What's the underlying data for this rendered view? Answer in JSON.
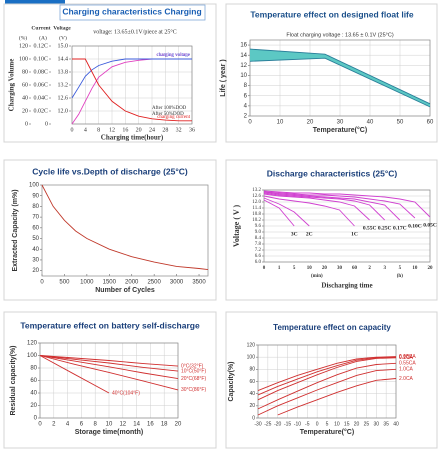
{
  "chart_data": [
    {
      "type": "line",
      "title": "Charging characteristics Charging",
      "subtitle": "voltage: 13.65±0.1V/piece at 25°C",
      "ylabel": "Charging Volume",
      "y2label": "Current",
      "y3label": "Voltage",
      "axis_units": [
        "(%)",
        "(A)",
        "(V)"
      ],
      "xlabel": "Charging time(hour)",
      "x": [
        0,
        2,
        4,
        6,
        8,
        12,
        16,
        20,
        24,
        28,
        32,
        36
      ],
      "xlim": [
        0,
        36
      ],
      "xticks": [
        0,
        4,
        8,
        12,
        16,
        20,
        24,
        28,
        32,
        36
      ],
      "ylim": [
        0,
        120
      ],
      "yticks": [
        0,
        20,
        40,
        60,
        80,
        100,
        120
      ],
      "y2lim": [
        0,
        0.12
      ],
      "y2ticks": [
        0,
        {
          "value": 0.02,
          "label": "0.02C"
        },
        {
          "value": 0.04,
          "label": "0.04C"
        },
        {
          "value": 0.06,
          "label": "0.06C"
        },
        {
          "value": 0.08,
          "label": "0.08C"
        },
        {
          "value": 0.1,
          "label": "0.10C"
        },
        {
          "value": 0.12,
          "label": "0.12C"
        }
      ],
      "y3lim": [
        11.4,
        15
      ],
      "y3ticks": [
        {
          "value": 12,
          "label": "12.0"
        },
        12.6,
        13.2,
        13.8,
        14.4,
        {
          "value": 15,
          "label": "15.0"
        }
      ],
      "grid": true,
      "annotations": [
        "After 100%DOD",
        "After 50%DOD"
      ],
      "series": [
        {
          "name": "charging volume",
          "color": "#e040c0",
          "values": [
            0,
            15,
            35,
            55,
            72,
            88,
            95,
            98,
            100,
            100,
            100,
            100
          ]
        },
        {
          "name": "charging voltage",
          "color": "#3b5bdb",
          "axis": "y3",
          "values": [
            12.6,
            13.1,
            13.6,
            13.9,
            14.1,
            14.3,
            14.4,
            14.4,
            14.4,
            14.4,
            14.4,
            14.4
          ]
        },
        {
          "name": "charging current",
          "color": "#e02020",
          "axis": "y2",
          "values": [
            0.1,
            0.1,
            0.1,
            0.08,
            0.06,
            0.035,
            0.02,
            0.012,
            0.008,
            0.006,
            0.005,
            0.005
          ]
        }
      ]
    },
    {
      "type": "area",
      "title": "Temperature effect on designed float life",
      "annotations": [
        "Float charging voltage : 13.65 ± 0.1V (25°C)"
      ],
      "ylabel": "Life ( year )",
      "xlabel": "Temperature(°C)",
      "x": [
        0,
        25,
        60
      ],
      "xlim": [
        0,
        60
      ],
      "xticks": [
        0,
        10,
        20,
        30,
        40,
        50,
        60
      ],
      "ylim": [
        2,
        17
      ],
      "yticks": [
        2,
        4,
        6,
        8,
        10,
        12,
        14,
        16
      ],
      "grid": true,
      "color": "#5cc8c4",
      "series": [
        {
          "color": "#2a7f9a",
          "values": [
            15.2,
            14.2,
            4.4
          ]
        },
        {
          "color": "#2a7f9a",
          "values": [
            12.8,
            13.4,
            3.8
          ]
        }
      ]
    },
    {
      "type": "line",
      "title": "Cycle life vs.Depth of discharge (25°C)",
      "ylabel": "Extracted Capacity (m%)",
      "xlabel": "Number of Cycles",
      "x": [
        0,
        250,
        500,
        750,
        1000,
        1500,
        2000,
        2500,
        3000,
        3500,
        3700
      ],
      "xlim": [
        0,
        3700
      ],
      "xticks": [
        0,
        500,
        1000,
        1500,
        2000,
        2500,
        3000,
        3500
      ],
      "ylim": [
        15,
        100
      ],
      "yticks": [
        20,
        30,
        40,
        50,
        60,
        70,
        80,
        90,
        100
      ],
      "grid": false,
      "series": [
        {
          "color": "#c0392b",
          "values": [
            100,
            80,
            67,
            57,
            50,
            40,
            33,
            28,
            24,
            22,
            21
          ]
        }
      ]
    },
    {
      "type": "line",
      "title": "Discharge characteristics (25°C)",
      "ylabel": "Voltage ( V )",
      "xlabel": "Discharging time",
      "x_units": [
        "(min)",
        "(h)"
      ],
      "categories": [
        "0",
        "1",
        "5",
        "10",
        "20",
        "30",
        "60",
        "2",
        "3",
        "5",
        "10",
        "20"
      ],
      "ylim": [
        6,
        13.2
      ],
      "yticks": [
        {
          "value": 6,
          "label": "6.0"
        },
        6.6,
        7.2,
        7.8,
        8.4,
        {
          "value": 9,
          "label": "9.0"
        },
        9.6,
        10.2,
        10.8,
        11.4,
        {
          "value": 12,
          "label": "12.0"
        },
        12.6,
        13.2
      ],
      "grid": true,
      "series": [
        {
          "name": "3C",
          "color": "#d040d0",
          "values": [
            12.2,
            11.4,
            9.6,
            null,
            null,
            null,
            null,
            null,
            null,
            null,
            null,
            null
          ]
        },
        {
          "name": "2C",
          "color": "#d040d0",
          "values": [
            12.4,
            11.8,
            11.0,
            9.6,
            null,
            null,
            null,
            null,
            null,
            null,
            null,
            null
          ]
        },
        {
          "name": "1C",
          "color": "#d040d0",
          "values": [
            12.6,
            12.3,
            12.1,
            11.9,
            11.6,
            11.2,
            9.6,
            null,
            null,
            null,
            null,
            null
          ]
        },
        {
          "name": "0.55C",
          "color": "#d040d0",
          "values": [
            12.8,
            12.6,
            12.5,
            12.4,
            12.2,
            12.0,
            11.6,
            10.2,
            null,
            null,
            null,
            null
          ]
        },
        {
          "name": "0.25C",
          "color": "#d040d0",
          "values": [
            12.9,
            12.7,
            12.6,
            12.5,
            12.4,
            12.3,
            12.1,
            11.7,
            10.2,
            null,
            null,
            null
          ]
        },
        {
          "name": "0.17C",
          "color": "#d040d0",
          "values": [
            13.0,
            12.8,
            12.7,
            12.6,
            12.5,
            12.4,
            12.3,
            12.0,
            11.7,
            10.2,
            null,
            null
          ]
        },
        {
          "name": "0.10C",
          "color": "#d040d0",
          "values": [
            13.0,
            12.9,
            12.8,
            12.7,
            12.7,
            12.6,
            12.5,
            12.3,
            12.1,
            11.8,
            10.4,
            null
          ]
        },
        {
          "name": "0.05C",
          "color": "#d040d0",
          "values": [
            13.1,
            13.0,
            12.9,
            12.9,
            12.8,
            12.8,
            12.7,
            12.6,
            12.5,
            12.3,
            12.0,
            10.5
          ]
        }
      ]
    },
    {
      "type": "line",
      "title": "Temperature effect on battery self-discharge",
      "ylabel": "Residual capacity(%)",
      "xlabel": "Storage time(month)",
      "x": [
        0,
        5,
        10,
        15,
        20
      ],
      "xlim": [
        0,
        20
      ],
      "xticks": [
        0,
        2,
        4,
        6,
        8,
        10,
        12,
        14,
        16,
        18,
        20
      ],
      "ylim": [
        0,
        120
      ],
      "yticks": [
        0,
        20,
        40,
        60,
        80,
        100,
        120
      ],
      "grid": true,
      "series": [
        {
          "name": "0°C(32°F)",
          "color": "#d03030",
          "values": [
            100,
            96,
            92,
            87,
            83
          ]
        },
        {
          "name": "10°C(50°F)",
          "color": "#d03030",
          "values": [
            100,
            94,
            88,
            81,
            75
          ]
        },
        {
          "name": "20°C(68°F)",
          "color": "#d03030",
          "values": [
            100,
            91,
            82,
            72,
            63
          ]
        },
        {
          "name": "30°C(86°F)",
          "color": "#d03030",
          "values": [
            100,
            86,
            73,
            59,
            45
          ]
        },
        {
          "name": "40°C(104°F)",
          "color": "#d03030",
          "values": [
            100,
            70,
            40,
            null,
            null
          ]
        }
      ]
    },
    {
      "type": "line",
      "title": "Temperature effect on capacity",
      "ylabel": "Capacity(%)",
      "xlabel": "Temperature(°C)",
      "x": [
        -30,
        -20,
        -10,
        0,
        10,
        20,
        30,
        40
      ],
      "xlim": [
        -30,
        40
      ],
      "xticks": [
        -30,
        -25,
        -20,
        -15,
        -10,
        -5,
        0,
        5,
        10,
        15,
        20,
        25,
        30,
        35,
        40
      ],
      "ylim": [
        0,
        120
      ],
      "yticks": [
        0,
        20,
        40,
        60,
        80,
        100,
        120
      ],
      "grid": true,
      "series": [
        {
          "name": "0.05CA",
          "color": "#d03030",
          "values": [
            45,
            58,
            70,
            80,
            90,
            97,
            100,
            101
          ]
        },
        {
          "name": "0.1CA",
          "color": "#d03030",
          "values": [
            38,
            52,
            64,
            76,
            86,
            95,
            99,
            100
          ]
        },
        {
          "name": "0.2CA",
          "color": "#d03030",
          "values": [
            30,
            45,
            58,
            71,
            83,
            93,
            98,
            99
          ]
        },
        {
          "name": "0.55CA",
          "color": "#d03030",
          "values": [
            15,
            30,
            44,
            58,
            71,
            82,
            88,
            90
          ]
        },
        {
          "name": "1.0CA",
          "color": "#d03030",
          "values": [
            5,
            20,
            33,
            46,
            58,
            70,
            78,
            80
          ]
        },
        {
          "name": "2.0CA",
          "color": "#d03030",
          "values": [
            null,
            5,
            18,
            30,
            42,
            53,
            62,
            65
          ]
        }
      ]
    }
  ]
}
